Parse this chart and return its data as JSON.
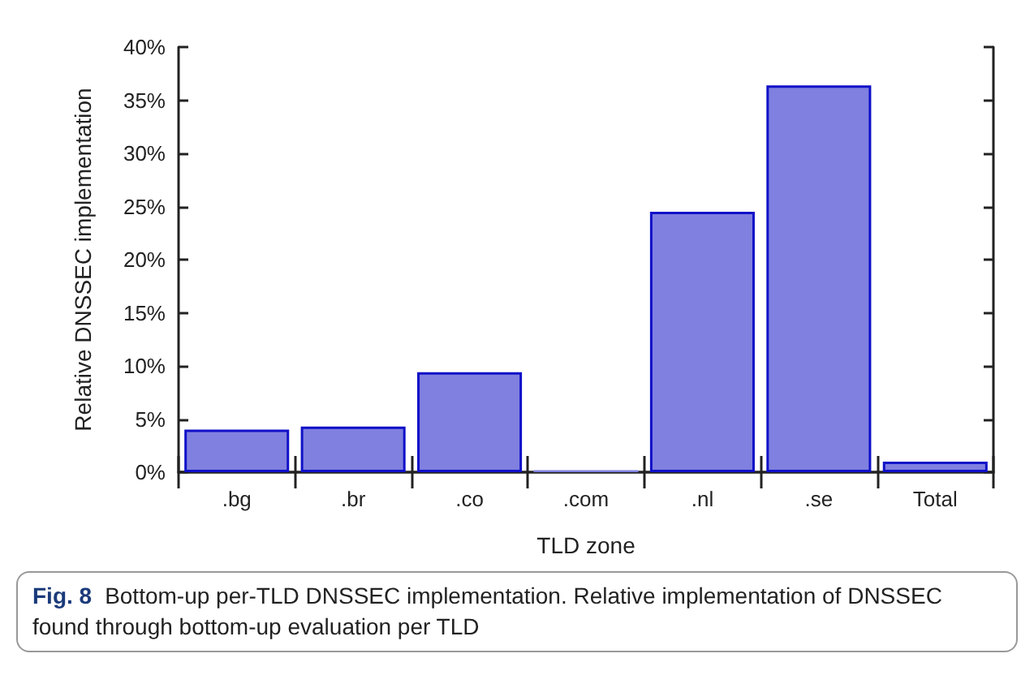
{
  "chart_data": {
    "type": "bar",
    "xlabel": "TLD zone",
    "ylabel": "Relative DNSSEC implementation",
    "categories": [
      ".bg",
      ".br",
      ".co",
      ".com",
      ".nl",
      ".se",
      "Total"
    ],
    "series": [
      {
        "color": "#8080e0",
        "values": [
          4.0,
          4.3,
          9.4,
          0.2,
          24.5,
          36.4,
          1.0
        ]
      }
    ],
    "ylim": [
      0,
      40
    ],
    "yticks": [
      {
        "value": 0,
        "label": "0%"
      },
      {
        "value": 5,
        "label": "5%"
      },
      {
        "value": 10,
        "label": "10%"
      },
      {
        "value": 15,
        "label": "15%"
      },
      {
        "value": 20,
        "label": "20%"
      },
      {
        "value": 25,
        "label": "25%"
      },
      {
        "value": 30,
        "label": "30%"
      },
      {
        "value": 35,
        "label": "35%"
      },
      {
        "value": 40,
        "label": "40%"
      }
    ],
    "grid": false,
    "annotations": [
      "Fig. 8",
      "Bottom-up per-TLD DNSSEC implementation. Relative implementation of DNSSEC found through bottom-up evaluation per TLD"
    ]
  }
}
